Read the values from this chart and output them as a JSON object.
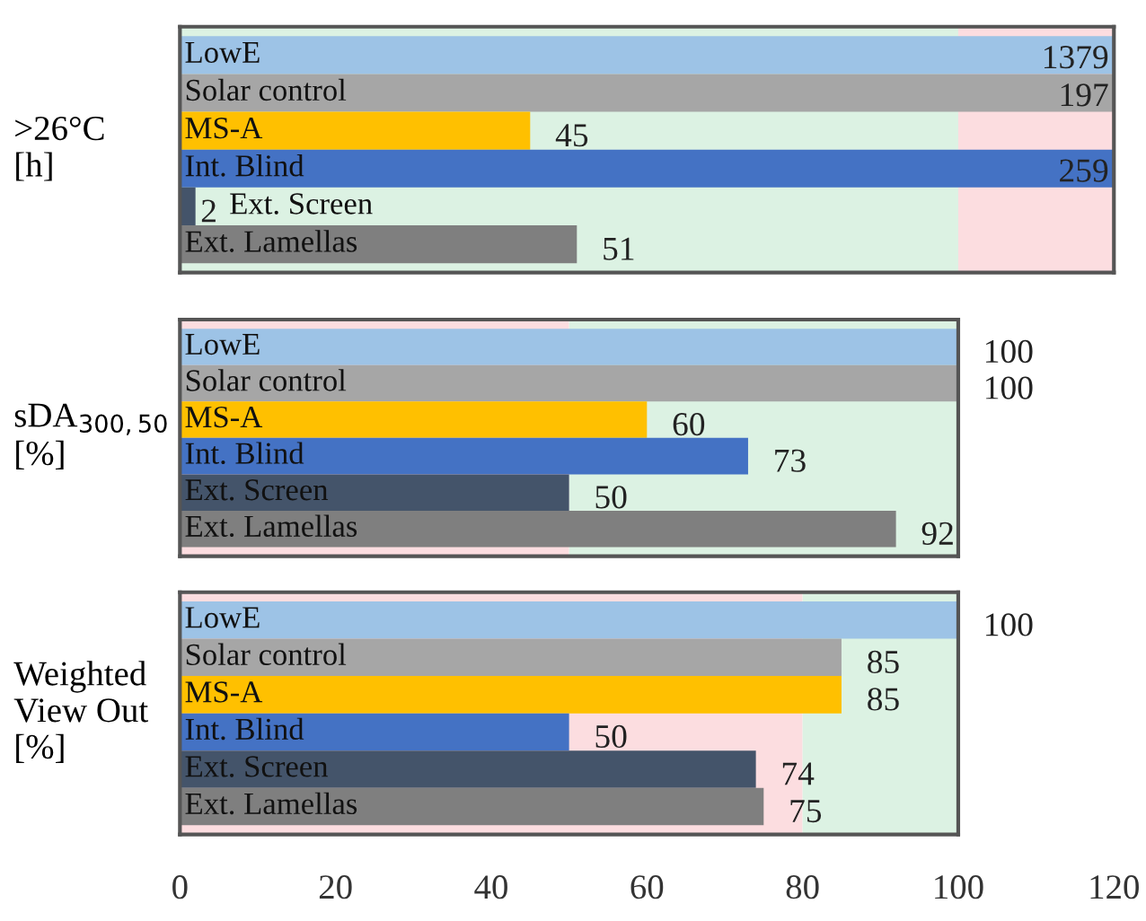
{
  "chart_data": [
    {
      "type": "bar",
      "orientation": "horizontal",
      "ylabel": ">26°C\n[h]",
      "categories": [
        "LowE",
        "Solar control",
        "MS-A",
        "Int. Blind",
        "Ext. Screen",
        "Ext. Lamellas"
      ],
      "values": [
        null,
        null,
        45,
        null,
        2,
        51
      ],
      "value_labels": [
        "1379",
        "197",
        "45",
        "259",
        "2",
        "51"
      ],
      "colors": [
        "#9dc3e6",
        "#a6a6a6",
        "#ffc000",
        "#4472c4",
        "#44546a",
        "#7f7f7f"
      ],
      "xlim": [
        0,
        120
      ],
      "tick_labels": false,
      "bands": [
        {
          "axis": "x",
          "from": 0,
          "to": 100,
          "color": "#dcf2e3"
        },
        {
          "axis": "x",
          "from": 100,
          "to": 120,
          "color": "#fcdde0"
        }
      ]
    },
    {
      "type": "bar",
      "orientation": "horizontal",
      "ylabel": "sDA$_{300,50}$\n[%]",
      "categories": [
        "LowE",
        "Solar control",
        "MS-A",
        "Int. Blind",
        "Ext. Screen",
        "Ext. Lamellas"
      ],
      "values": [
        100,
        100,
        60,
        73,
        50,
        92
      ],
      "colors": [
        "#9dc3e6",
        "#a6a6a6",
        "#ffc000",
        "#4472c4",
        "#44546a",
        "#7f7f7f"
      ],
      "xlim": [
        0,
        120
      ],
      "data_labels": true,
      "tick_labels": false,
      "bands": [
        {
          "axis": "x",
          "from": 0,
          "to": 50,
          "color": "#fcdde0"
        },
        {
          "axis": "x",
          "from": 50,
          "to": 100,
          "color": "#dcf2e3"
        }
      ]
    },
    {
      "type": "bar",
      "orientation": "horizontal",
      "ylabel": "Weighted\nView Out\n[%]",
      "categories": [
        "LowE",
        "Solar control",
        "MS-A",
        "Int. Blind",
        "Ext. Screen",
        "Ext. Lamellas"
      ],
      "values": [
        100,
        85,
        85,
        50,
        74,
        75
      ],
      "colors": [
        "#9dc3e6",
        "#a6a6a6",
        "#ffc000",
        "#4472c4",
        "#44546a",
        "#7f7f7f"
      ],
      "xlim": [
        0,
        120
      ],
      "xticks": [
        0,
        20,
        40,
        60,
        80,
        100,
        120
      ],
      "data_labels": true,
      "tick_labels": "x",
      "bands": [
        {
          "axis": "x",
          "from": 0,
          "to": 80,
          "color": "#fcdde0"
        },
        {
          "axis": "x",
          "from": 80,
          "to": 100,
          "color": "#dcf2e3"
        }
      ]
    }
  ]
}
